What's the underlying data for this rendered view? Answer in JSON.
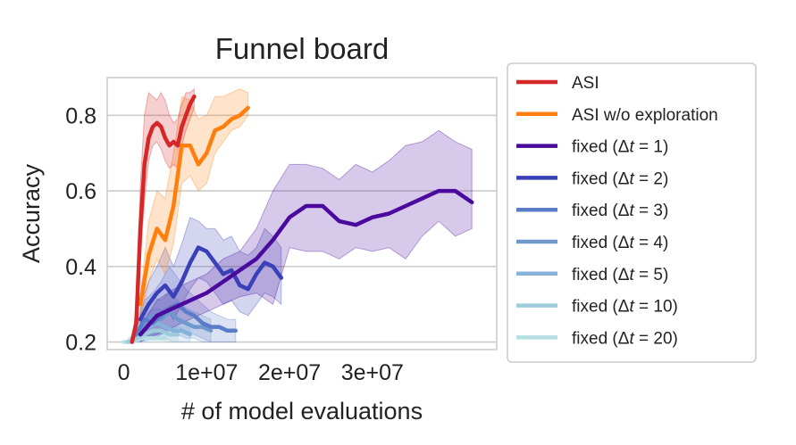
{
  "chart_data": {
    "type": "line",
    "title": "Funnel board",
    "xlabel": "# of model evaluations",
    "ylabel": "Accuracy",
    "xlim": [
      -2000000,
      45000000
    ],
    "ylim": [
      0.18,
      0.9
    ],
    "xticks": [
      0,
      10000000,
      20000000,
      30000000
    ],
    "xtick_labels": [
      "0",
      "1e+07",
      "2e+07",
      "3e+07"
    ],
    "yticks": [
      0.2,
      0.4,
      0.6,
      0.8
    ],
    "ytick_labels": [
      "0.2",
      "0.4",
      "0.6",
      "0.8"
    ],
    "grid": "horizontal",
    "legend_position": "outside-right",
    "series": [
      {
        "name": "ASI",
        "legend_prefix": "ASI",
        "legend_var": "",
        "legend_suffix": "",
        "color": "#d62728",
        "x": [
          1000000,
          1500000,
          2000000,
          2500000,
          3000000,
          3500000,
          4000000,
          4500000,
          5000000,
          5500000,
          6000000,
          6500000,
          7000000,
          7500000,
          8000000,
          8500000
        ],
        "y": [
          0.2,
          0.25,
          0.5,
          0.67,
          0.74,
          0.77,
          0.78,
          0.77,
          0.74,
          0.72,
          0.73,
          0.72,
          0.77,
          0.8,
          0.83,
          0.85
        ],
        "low": [
          0.2,
          0.22,
          0.42,
          0.57,
          0.68,
          0.72,
          0.73,
          0.71,
          0.68,
          0.66,
          0.67,
          0.66,
          0.72,
          0.76,
          0.79,
          0.82
        ],
        "high": [
          0.21,
          0.29,
          0.62,
          0.8,
          0.86,
          0.85,
          0.84,
          0.86,
          0.84,
          0.8,
          0.78,
          0.79,
          0.83,
          0.86,
          0.86,
          0.87
        ]
      },
      {
        "name": "ASI w/o exploration",
        "legend_prefix": "ASI w/o exploration",
        "legend_var": "",
        "legend_suffix": "",
        "color": "#ff7f0e",
        "x": [
          2000000,
          3000000,
          4000000,
          5000000,
          6000000,
          7000000,
          8000000,
          9000000,
          10000000,
          11000000,
          12000000,
          13000000,
          14000000,
          15000000
        ],
        "y": [
          0.3,
          0.43,
          0.5,
          0.47,
          0.56,
          0.72,
          0.72,
          0.67,
          0.7,
          0.76,
          0.77,
          0.79,
          0.8,
          0.82
        ],
        "low": [
          0.26,
          0.36,
          0.42,
          0.38,
          0.46,
          0.62,
          0.64,
          0.6,
          0.62,
          0.7,
          0.73,
          0.76,
          0.77,
          0.8
        ],
        "high": [
          0.32,
          0.52,
          0.6,
          0.58,
          0.7,
          0.85,
          0.84,
          0.79,
          0.8,
          0.85,
          0.85,
          0.86,
          0.87,
          0.86
        ]
      },
      {
        "name": "fixed (Δt = 1)",
        "legend_prefix": "fixed (Δ",
        "legend_var": "t",
        "legend_suffix": " = 1)",
        "color": "#4b0a9e",
        "x": [
          2000000,
          4000000,
          6000000,
          8000000,
          10000000,
          12000000,
          14000000,
          16000000,
          18000000,
          20000000,
          22000000,
          24000000,
          26000000,
          28000000,
          30000000,
          32000000,
          34000000,
          36000000,
          38000000,
          40000000,
          42000000
        ],
        "y": [
          0.22,
          0.27,
          0.29,
          0.31,
          0.33,
          0.36,
          0.39,
          0.42,
          0.47,
          0.53,
          0.56,
          0.56,
          0.52,
          0.51,
          0.53,
          0.54,
          0.56,
          0.58,
          0.6,
          0.6,
          0.57
        ],
        "low": [
          0.2,
          0.22,
          0.24,
          0.26,
          0.28,
          0.3,
          0.32,
          0.33,
          0.3,
          0.45,
          0.44,
          0.44,
          0.42,
          0.45,
          0.44,
          0.45,
          0.42,
          0.48,
          0.52,
          0.48,
          0.5
        ],
        "high": [
          0.24,
          0.31,
          0.34,
          0.36,
          0.38,
          0.42,
          0.44,
          0.5,
          0.6,
          0.67,
          0.67,
          0.66,
          0.63,
          0.67,
          0.65,
          0.68,
          0.72,
          0.73,
          0.76,
          0.73,
          0.71
        ]
      },
      {
        "name": "fixed (Δt = 2)",
        "legend_prefix": "fixed (Δ",
        "legend_var": "t",
        "legend_suffix": " = 2)",
        "color": "#3a40b8",
        "x": [
          2000000,
          3000000,
          4000000,
          5000000,
          6000000,
          7000000,
          8000000,
          9000000,
          10000000,
          11000000,
          12000000,
          13000000,
          14000000,
          15000000,
          16000000,
          17000000,
          18000000,
          19000000
        ],
        "y": [
          0.26,
          0.3,
          0.33,
          0.35,
          0.32,
          0.36,
          0.41,
          0.45,
          0.44,
          0.41,
          0.38,
          0.39,
          0.35,
          0.34,
          0.38,
          0.41,
          0.4,
          0.37
        ],
        "low": [
          0.22,
          0.25,
          0.27,
          0.29,
          0.26,
          0.3,
          0.34,
          0.37,
          0.36,
          0.33,
          0.3,
          0.31,
          0.28,
          0.27,
          0.3,
          0.33,
          0.32,
          0.3
        ],
        "high": [
          0.3,
          0.36,
          0.4,
          0.45,
          0.4,
          0.46,
          0.53,
          0.52,
          0.5,
          0.5,
          0.47,
          0.48,
          0.44,
          0.43,
          0.45,
          0.5,
          0.48,
          0.45
        ]
      },
      {
        "name": "fixed (Δt = 3)",
        "legend_prefix": "fixed (Δ",
        "legend_var": "t",
        "legend_suffix": " = 3)",
        "color": "#5b7dc8",
        "x": [
          1500000,
          2500000,
          3500000,
          4500000,
          5500000,
          6500000,
          7500000,
          8500000,
          9500000,
          10500000,
          11500000,
          12500000,
          13500000
        ],
        "y": [
          0.22,
          0.26,
          0.25,
          0.27,
          0.29,
          0.3,
          0.28,
          0.27,
          0.25,
          0.24,
          0.24,
          0.23,
          0.23
        ],
        "low": [
          0.2,
          0.22,
          0.21,
          0.22,
          0.23,
          0.24,
          0.23,
          0.22,
          0.21,
          0.2,
          0.2,
          0.2,
          0.2
        ],
        "high": [
          0.25,
          0.31,
          0.33,
          0.36,
          0.4,
          0.37,
          0.34,
          0.32,
          0.3,
          0.28,
          0.27,
          0.26,
          0.26
        ]
      },
      {
        "name": "fixed (Δt = 4)",
        "legend_prefix": "fixed (Δ",
        "legend_var": "t",
        "legend_suffix": " = 4)",
        "color": "#6f98cf",
        "x": [
          1500000,
          2500000,
          3500000,
          4500000,
          5500000,
          6500000,
          7500000,
          8500000,
          9500000,
          10500000
        ],
        "y": [
          0.22,
          0.25,
          0.27,
          0.26,
          0.28,
          0.26,
          0.25,
          0.24,
          0.24,
          0.23
        ],
        "low": [
          0.2,
          0.21,
          0.22,
          0.22,
          0.23,
          0.22,
          0.21,
          0.21,
          0.2,
          0.2
        ],
        "high": [
          0.24,
          0.29,
          0.32,
          0.31,
          0.33,
          0.31,
          0.29,
          0.28,
          0.27,
          0.26
        ]
      },
      {
        "name": "fixed (Δt = 5)",
        "legend_prefix": "fixed (Δ",
        "legend_var": "t",
        "legend_suffix": " = 5)",
        "color": "#87b2da",
        "x": [
          1000000,
          2000000,
          3000000,
          4000000,
          5000000,
          6000000,
          7000000,
          8000000
        ],
        "y": [
          0.21,
          0.23,
          0.24,
          0.25,
          0.24,
          0.23,
          0.23,
          0.22
        ],
        "low": [
          0.2,
          0.2,
          0.21,
          0.21,
          0.21,
          0.2,
          0.2,
          0.2
        ],
        "high": [
          0.23,
          0.26,
          0.28,
          0.29,
          0.28,
          0.27,
          0.26,
          0.25
        ]
      },
      {
        "name": "fixed (Δt = 10)",
        "legend_prefix": "fixed (Δ",
        "legend_var": "t",
        "legend_suffix": " = 10)",
        "color": "#9ecbdc",
        "x": [
          500000,
          1500000,
          2500000,
          3500000,
          4500000,
          5500000,
          6500000
        ],
        "y": [
          0.2,
          0.21,
          0.22,
          0.23,
          0.23,
          0.22,
          0.22
        ],
        "low": [
          0.2,
          0.2,
          0.2,
          0.21,
          0.21,
          0.2,
          0.2
        ],
        "high": [
          0.21,
          0.23,
          0.25,
          0.26,
          0.25,
          0.24,
          0.24
        ]
      },
      {
        "name": "fixed (Δt = 20)",
        "legend_prefix": "fixed (Δ",
        "legend_var": "t",
        "legend_suffix": " = 20)",
        "color": "#b5dfe3",
        "x": [
          0,
          1000000,
          2000000,
          3000000,
          4000000,
          5000000
        ],
        "y": [
          0.2,
          0.2,
          0.21,
          0.21,
          0.21,
          0.21
        ],
        "low": [
          0.2,
          0.2,
          0.2,
          0.2,
          0.2,
          0.2
        ],
        "high": [
          0.2,
          0.21,
          0.22,
          0.23,
          0.23,
          0.22
        ]
      }
    ]
  }
}
